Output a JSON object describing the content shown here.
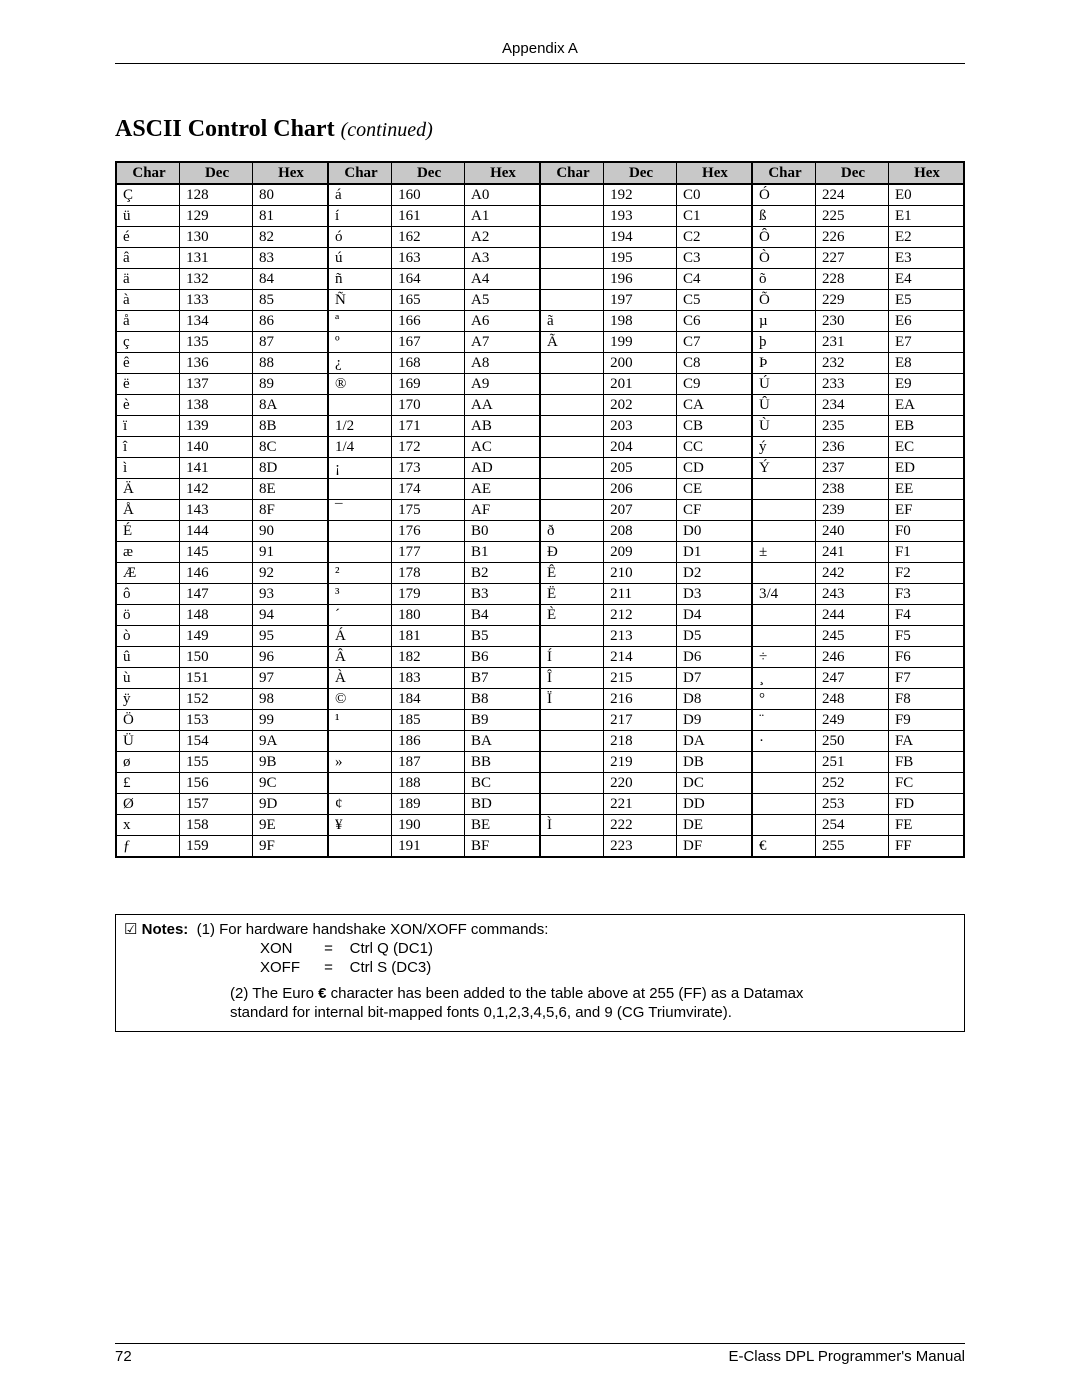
{
  "header": {
    "appendix": "Appendix A"
  },
  "title": {
    "main": "ASCII Control Chart",
    "suffix": "(continued)"
  },
  "table": {
    "headers": [
      "Char",
      "Dec",
      "Hex",
      "Char",
      "Dec",
      "Hex",
      "Char",
      "Dec",
      "Hex",
      "Char",
      "Dec",
      "Hex"
    ],
    "rows": [
      [
        "Ç",
        "128",
        "80",
        "á",
        "160",
        "A0",
        "",
        "192",
        "C0",
        "Ó",
        "224",
        "E0"
      ],
      [
        "ü",
        "129",
        "81",
        "í",
        "161",
        "A1",
        "",
        "193",
        "C1",
        "ß",
        "225",
        "E1"
      ],
      [
        "é",
        "130",
        "82",
        "ó",
        "162",
        "A2",
        "",
        "194",
        "C2",
        "Ô",
        "226",
        "E2"
      ],
      [
        "â",
        "131",
        "83",
        "ú",
        "163",
        "A3",
        "",
        "195",
        "C3",
        "Ò",
        "227",
        "E3"
      ],
      [
        "ä",
        "132",
        "84",
        "ñ",
        "164",
        "A4",
        "",
        "196",
        "C4",
        "õ",
        "228",
        "E4"
      ],
      [
        "à",
        "133",
        "85",
        "Ñ",
        "165",
        "A5",
        "",
        "197",
        "C5",
        "Õ",
        "229",
        "E5"
      ],
      [
        "å",
        "134",
        "86",
        "ª",
        "166",
        "A6",
        "ã",
        "198",
        "C6",
        "µ",
        "230",
        "E6"
      ],
      [
        "ç",
        "135",
        "87",
        "º",
        "167",
        "A7",
        "Ã",
        "199",
        "C7",
        "þ",
        "231",
        "E7"
      ],
      [
        "ê",
        "136",
        "88",
        "¿",
        "168",
        "A8",
        "",
        "200",
        "C8",
        "Þ",
        "232",
        "E8"
      ],
      [
        "ë",
        "137",
        "89",
        "®",
        "169",
        "A9",
        "",
        "201",
        "C9",
        "Ú",
        "233",
        "E9"
      ],
      [
        "è",
        "138",
        "8A",
        "",
        "170",
        "AA",
        "",
        "202",
        "CA",
        "Û",
        "234",
        "EA"
      ],
      [
        "ï",
        "139",
        "8B",
        "1/2",
        "171",
        "AB",
        "",
        "203",
        "CB",
        "Ù",
        "235",
        "EB"
      ],
      [
        "î",
        "140",
        "8C",
        "1/4",
        "172",
        "AC",
        "",
        "204",
        "CC",
        "ý",
        "236",
        "EC"
      ],
      [
        "ì",
        "141",
        "8D",
        "¡",
        "173",
        "AD",
        "",
        "205",
        "CD",
        "Ý",
        "237",
        "ED"
      ],
      [
        "Ä",
        "142",
        "8E",
        "",
        "174",
        "AE",
        "",
        "206",
        "CE",
        "",
        "238",
        "EE"
      ],
      [
        "Å",
        "143",
        "8F",
        "¯",
        "175",
        "AF",
        "",
        "207",
        "CF",
        "",
        "239",
        "EF"
      ],
      [
        "É",
        "144",
        "90",
        "",
        "176",
        "B0",
        "ð",
        "208",
        "D0",
        "",
        "240",
        "F0"
      ],
      [
        "æ",
        "145",
        "91",
        "",
        "177",
        "B1",
        "Ð",
        "209",
        "D1",
        "±",
        "241",
        "F1"
      ],
      [
        "Æ",
        "146",
        "92",
        "²",
        "178",
        "B2",
        "Ê",
        "210",
        "D2",
        "",
        "242",
        "F2"
      ],
      [
        "ô",
        "147",
        "93",
        "³",
        "179",
        "B3",
        "Ë",
        "211",
        "D3",
        "3/4",
        "243",
        "F3"
      ],
      [
        "ö",
        "148",
        "94",
        "´",
        "180",
        "B4",
        "È",
        "212",
        "D4",
        "",
        "244",
        "F4"
      ],
      [
        "ò",
        "149",
        "95",
        "Á",
        "181",
        "B5",
        "",
        "213",
        "D5",
        "",
        "245",
        "F5"
      ],
      [
        "û",
        "150",
        "96",
        "Â",
        "182",
        "B6",
        "Í",
        "214",
        "D6",
        "÷",
        "246",
        "F6"
      ],
      [
        "ù",
        "151",
        "97",
        "À",
        "183",
        "B7",
        "Î",
        "215",
        "D7",
        "¸",
        "247",
        "F7"
      ],
      [
        "ÿ",
        "152",
        "98",
        "©",
        "184",
        "B8",
        "Ï",
        "216",
        "D8",
        "°",
        "248",
        "F8"
      ],
      [
        "Ö",
        "153",
        "99",
        "¹",
        "185",
        "B9",
        "",
        "217",
        "D9",
        "¨",
        "249",
        "F9"
      ],
      [
        "Ü",
        "154",
        "9A",
        "",
        "186",
        "BA",
        "",
        "218",
        "DA",
        "·",
        "250",
        "FA"
      ],
      [
        "ø",
        "155",
        "9B",
        "»",
        "187",
        "BB",
        "",
        "219",
        "DB",
        "",
        "251",
        "FB"
      ],
      [
        "£",
        "156",
        "9C",
        "",
        "188",
        "BC",
        "",
        "220",
        "DC",
        "",
        "252",
        "FC"
      ],
      [
        "Ø",
        "157",
        "9D",
        "¢",
        "189",
        "BD",
        "",
        "221",
        "DD",
        "",
        "253",
        "FD"
      ],
      [
        "x",
        "158",
        "9E",
        "¥",
        "190",
        "BE",
        "Ì",
        "222",
        "DE",
        "",
        "254",
        "FE"
      ],
      [
        "ƒ",
        "159",
        "9F",
        "",
        "191",
        "BF",
        "",
        "223",
        "DF",
        "€",
        "255",
        "FF"
      ]
    ]
  },
  "notes": {
    "label": "Notes:",
    "check": "☑",
    "line1": "(1)  For hardware handshake XON/XOFF commands:",
    "xon_l": "XON",
    "eq": "=",
    "xon_r": "Ctrl Q (DC1)",
    "xoff_l": "XOFF",
    "xoff_r": "Ctrl S (DC3)",
    "line2a": "(2) The Euro ",
    "euro": "€",
    "line2b": " character has been added to the table above at 255 (FF) as a Datamax",
    "line2c": "standard for internal bit-mapped fonts 0,1,2,3,4,5,6, and 9 (CG Triumvirate)."
  },
  "footer": {
    "page": "72",
    "manual": "E-Class DPL Programmer's Manual"
  }
}
